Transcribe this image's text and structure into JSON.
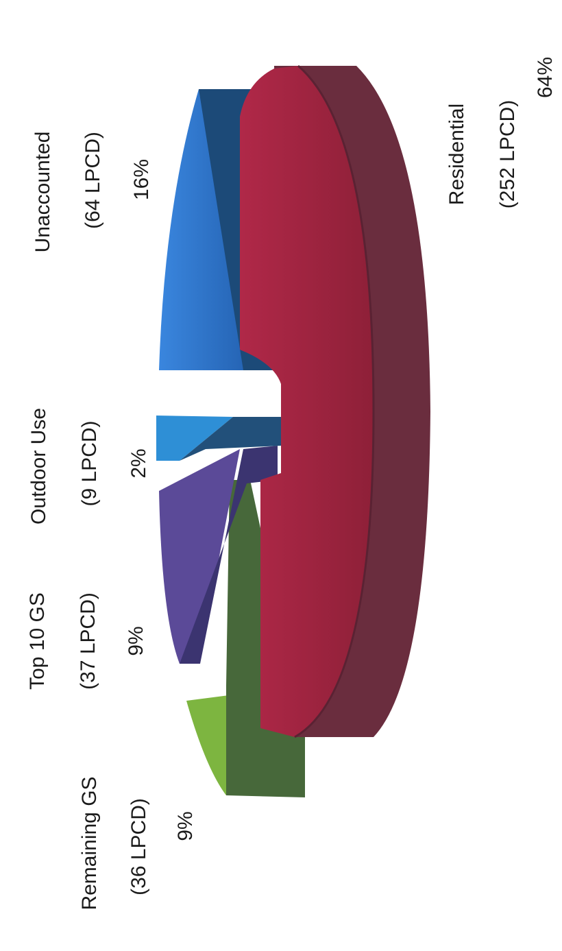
{
  "chart_data": {
    "type": "pie",
    "orientation": "rotated-90-ccw",
    "style": "3d-exploded",
    "slices": [
      {
        "label": "Residential",
        "lpcd": "(252 LPCD)",
        "percent": "64%",
        "value": 64,
        "color": "#a5243f"
      },
      {
        "label": "Unaccounted",
        "lpcd": "(64 LPCD)",
        "percent": "16%",
        "value": 16,
        "color": "#2d6cc0"
      },
      {
        "label": "Outdoor Use",
        "lpcd": "(9 LPCD)",
        "percent": "2%",
        "value": 2,
        "color": "#2e8fd6"
      },
      {
        "label": "Top 10 GS",
        "lpcd": "(37 LPCD)",
        "percent": "9%",
        "value": 9,
        "color": "#5b4a98"
      },
      {
        "label": "Remaining GS",
        "lpcd": "(36 LPCD)",
        "percent": "9%",
        "value": 9,
        "color": "#7db540"
      }
    ]
  }
}
